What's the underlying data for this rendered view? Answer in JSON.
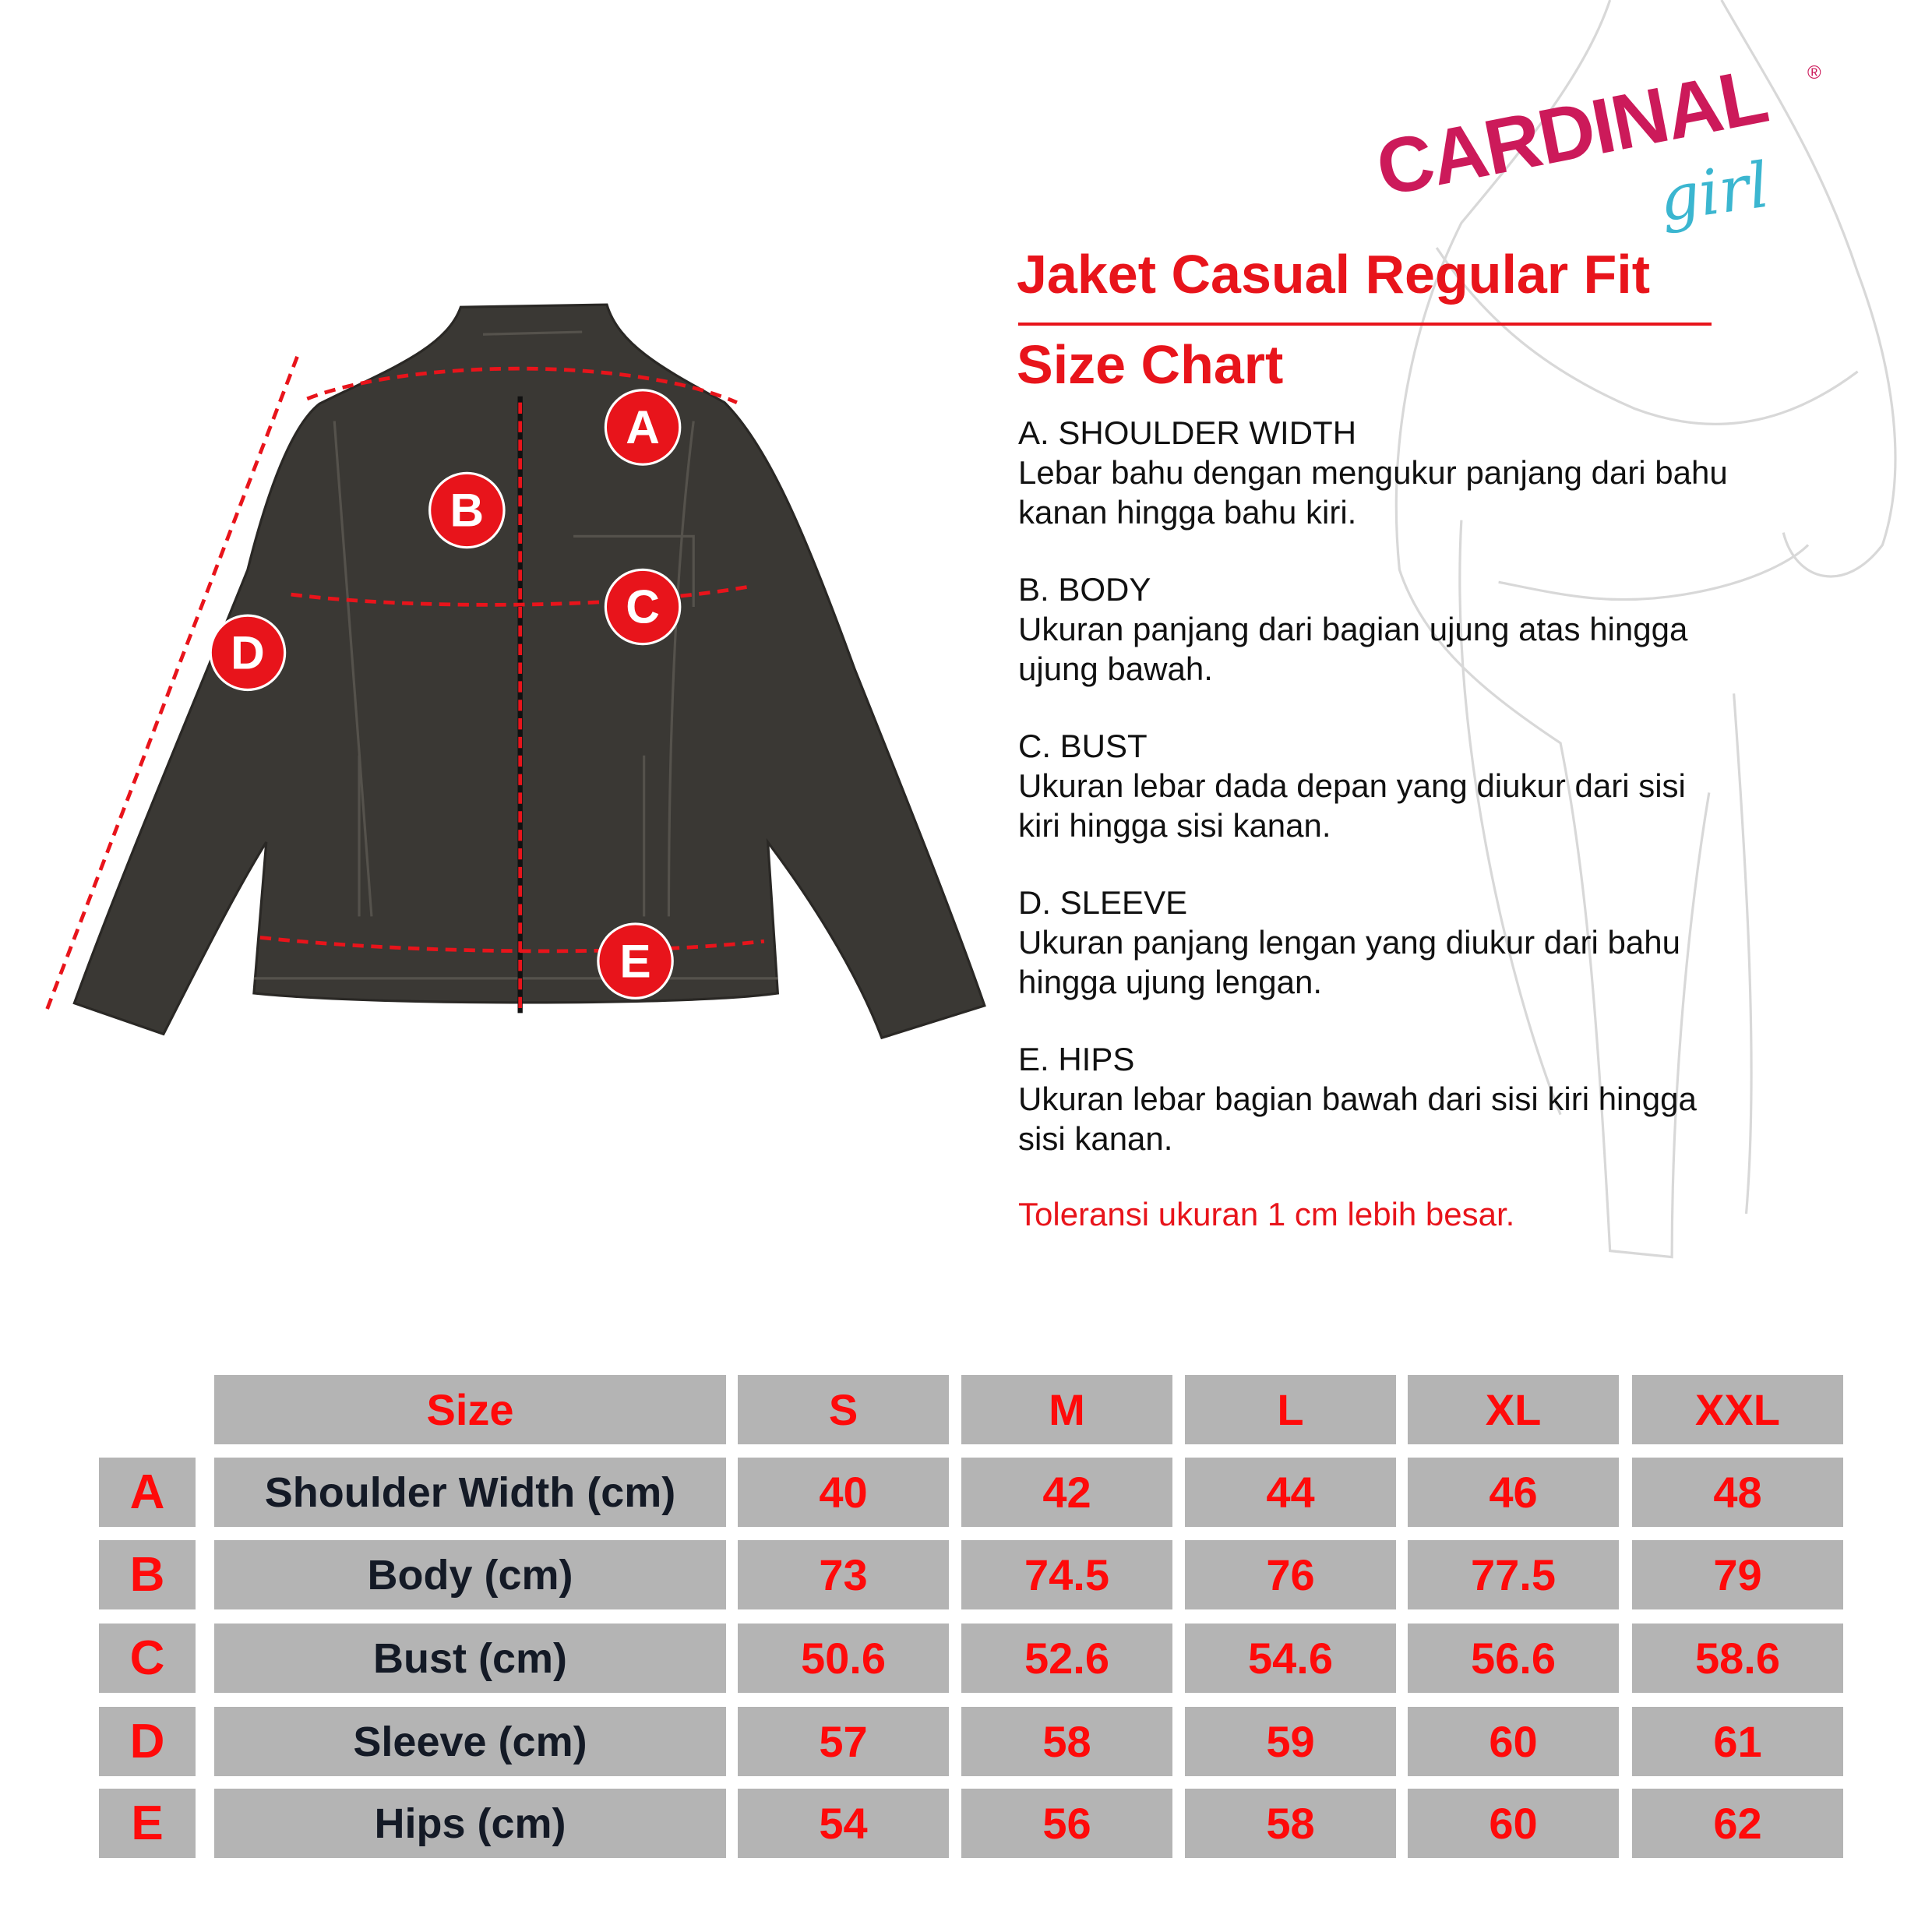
{
  "brand": {
    "name": "CARDINAL",
    "sub": "girl",
    "reg": "®",
    "color": "#cc1a5a",
    "sub_color": "#3bb6d0"
  },
  "title": "Jaket Casual Regular Fit",
  "subtitle": "Size Chart",
  "accent_color": "#e8141b",
  "diagram_markers": [
    "A",
    "B",
    "C",
    "D",
    "E"
  ],
  "descriptions": [
    {
      "heading": "A. SHOULDER WIDTH",
      "lines": [
        "Lebar bahu dengan mengukur panjang dari bahu",
        "kanan hingga bahu kiri."
      ]
    },
    {
      "heading": "B. BODY",
      "lines": [
        "Ukuran panjang dari bagian ujung atas hingga",
        "ujung bawah."
      ]
    },
    {
      "heading": "C. BUST",
      "lines": [
        "Ukuran lebar dada depan yang diukur dari sisi",
        "kiri hingga sisi kanan."
      ]
    },
    {
      "heading": "D. SLEEVE",
      "lines": [
        "Ukuran panjang lengan yang diukur dari bahu",
        "hingga ujung lengan."
      ]
    },
    {
      "heading": "E. HIPS",
      "lines": [
        "Ukuran lebar bagian bawah dari sisi kiri hingga",
        "sisi kanan."
      ]
    }
  ],
  "tolerance": "Toleransi ukuran 1 cm lebih besar.",
  "table": {
    "header": [
      "Size",
      "S",
      "M",
      "L",
      "XL",
      "XXL"
    ],
    "rows": [
      {
        "key": "A",
        "label": "Shoulder Width (cm)",
        "values": [
          "40",
          "42",
          "44",
          "46",
          "48"
        ]
      },
      {
        "key": "B",
        "label": "Body (cm)",
        "values": [
          "73",
          "74.5",
          "76",
          "77.5",
          "79"
        ]
      },
      {
        "key": "C",
        "label": "Bust (cm)",
        "values": [
          "50.6",
          "52.6",
          "54.6",
          "56.6",
          "58.6"
        ]
      },
      {
        "key": "D",
        "label": "Sleeve (cm)",
        "values": [
          "57",
          "58",
          "59",
          "60",
          "61"
        ]
      },
      {
        "key": "E",
        "label": "Hips (cm)",
        "values": [
          "54",
          "56",
          "58",
          "60",
          "62"
        ]
      }
    ]
  }
}
